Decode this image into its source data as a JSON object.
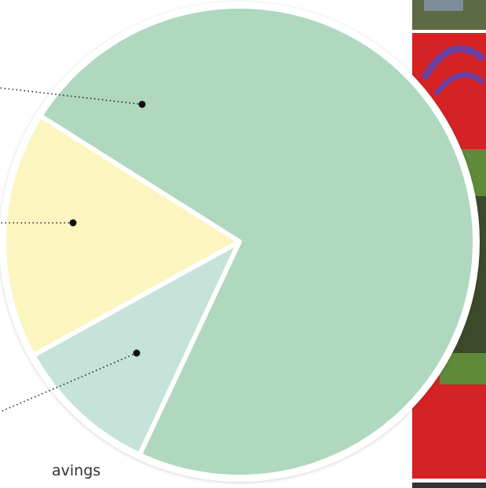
{
  "chart_data": {
    "type": "pie",
    "values": [
      73,
      10,
      17
    ],
    "colors": [
      "#afd8bf",
      "#c5e3d8",
      "#fbf5c0"
    ],
    "annotation": "avings"
  }
}
